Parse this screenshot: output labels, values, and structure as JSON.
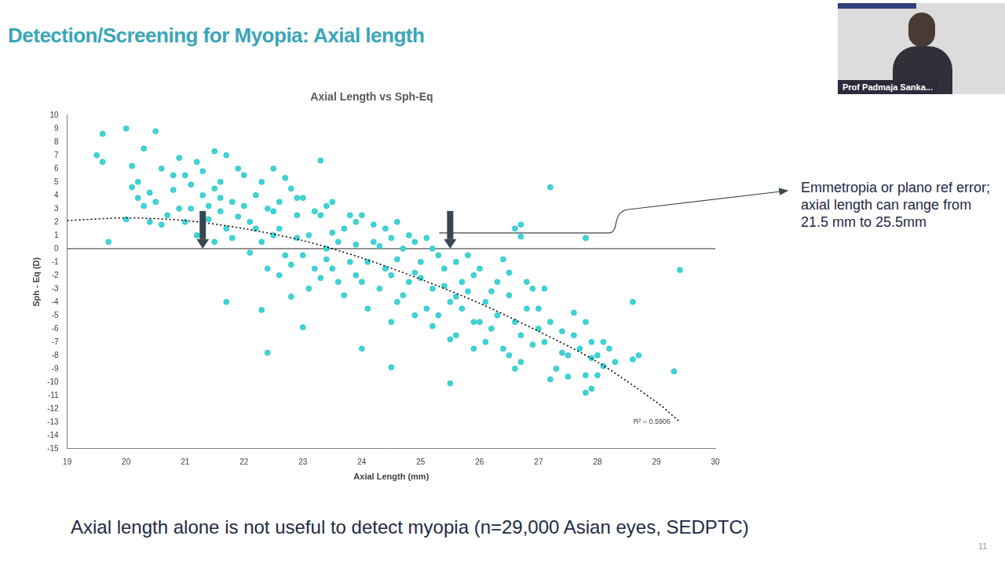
{
  "slide": {
    "title": "Detection/Screening for Myopia: Axial length",
    "footer": "Axial length alone is not useful to detect myopia (n=29,000 Asian eyes, SEDPTC)",
    "page_number": "11",
    "presenter": "Prof Padmaja Sanka..."
  },
  "chart_data": {
    "type": "scatter",
    "title": "Axial Length vs Sph-Eq",
    "x_label": "Axial Length (mm)",
    "y_label": "Sph - Eq (D)",
    "color": "#3ad6d8",
    "marker": "circle",
    "x": [
      19.6,
      19.5,
      19.6,
      19.7,
      20.0,
      20.5,
      20.0,
      21.7,
      22.4,
      23.3,
      25.5,
      27.2,
      27.8,
      28.6,
      29.4,
      29.3,
      28.6,
      28.7,
      26.7,
      26.6,
      26.7,
      24.0,
      24.5,
      23.0,
      22.8,
      27.8,
      27.9,
      22.3,
      20.1,
      20.2,
      20.3,
      20.4,
      20.5,
      20.6,
      20.7,
      20.8,
      20.9,
      20.3,
      20.6,
      20.9,
      20.2,
      20.4,
      20.8,
      20.1,
      21.0,
      21.1,
      21.2,
      21.3,
      21.4,
      21.5,
      21.6,
      21.7,
      21.8,
      21.9,
      21.2,
      21.5,
      21.1,
      21.4,
      21.6,
      21.8,
      21.3,
      21.7,
      21.9,
      21.0,
      21.5,
      21.6,
      22.0,
      22.1,
      22.2,
      22.3,
      22.4,
      22.5,
      22.6,
      22.7,
      22.8,
      22.9,
      22.1,
      22.3,
      22.5,
      22.6,
      22.8,
      22.9,
      22.2,
      22.4,
      22.7,
      22.0,
      22.5,
      22.9,
      22.6,
      23.0,
      23.1,
      23.2,
      23.3,
      23.4,
      23.5,
      23.6,
      23.7,
      23.8,
      23.9,
      23.1,
      23.2,
      23.4,
      23.5,
      23.6,
      23.7,
      23.8,
      23.9,
      23.0,
      23.3,
      23.5,
      23.9,
      23.4,
      24.0,
      24.1,
      24.2,
      24.3,
      24.4,
      24.5,
      24.6,
      24.7,
      24.8,
      24.9,
      24.1,
      24.2,
      24.4,
      24.5,
      24.6,
      24.7,
      24.8,
      24.9,
      24.0,
      24.3,
      24.5,
      24.9,
      24.6,
      25.0,
      25.1,
      25.2,
      25.3,
      25.4,
      25.5,
      25.6,
      25.7,
      25.8,
      25.9,
      25.1,
      25.2,
      25.4,
      25.5,
      25.6,
      25.7,
      25.8,
      25.9,
      25.0,
      25.3,
      25.6,
      25.9,
      25.2,
      26.0,
      26.1,
      26.2,
      26.3,
      26.4,
      26.5,
      26.6,
      26.7,
      26.8,
      26.9,
      26.1,
      26.3,
      26.5,
      26.7,
      26.9,
      26.2,
      26.4,
      26.6,
      26.8,
      26.0,
      26.5,
      27.0,
      27.1,
      27.2,
      27.3,
      27.4,
      27.5,
      27.6,
      27.7,
      27.8,
      27.9,
      27.0,
      27.2,
      27.4,
      27.6,
      27.8,
      27.1,
      27.5,
      27.9,
      28.0,
      28.1,
      28.2,
      28.0,
      28.3,
      28.1
    ],
    "values": [
      8.6,
      7.0,
      6.5,
      0.5,
      9.0,
      8.8,
      2.2,
      -4.0,
      -7.8,
      6.6,
      -10.1,
      4.6,
      0.8,
      -4.0,
      -1.6,
      -9.2,
      -8.3,
      -8.0,
      1.8,
      1.5,
      0.9,
      -7.5,
      -8.9,
      -5.9,
      -3.6,
      -10.8,
      -10.5,
      -4.6,
      6.2,
      5.0,
      7.5,
      4.2,
      3.5,
      6.0,
      2.5,
      5.5,
      3.0,
      3.2,
      1.8,
      6.8,
      3.8,
      2.0,
      4.4,
      4.6,
      5.5,
      3.0,
      6.5,
      4.0,
      2.2,
      7.3,
      5.0,
      1.5,
      3.5,
      6.0,
      1.0,
      0.5,
      4.8,
      3.2,
      2.8,
      0.8,
      5.8,
      7.0,
      2.4,
      2.0,
      4.5,
      3.8,
      5.5,
      2.0,
      4.0,
      0.5,
      3.0,
      6.0,
      1.5,
      -0.5,
      4.5,
      2.5,
      -0.3,
      5.0,
      1.0,
      3.5,
      -1.2,
      0.8,
      1.5,
      -1.5,
      5.3,
      3.2,
      2.8,
      3.8,
      -2.0,
      3.8,
      1.0,
      -1.5,
      2.5,
      0.0,
      3.5,
      -2.5,
      1.5,
      -1.0,
      2.0,
      -3.0,
      2.8,
      -0.8,
      1.2,
      0.5,
      -3.5,
      2.5,
      -2.0,
      -0.5,
      -2.2,
      -1.5,
      0.3,
      3.2,
      2.5,
      -1.0,
      0.5,
      -3.0,
      1.5,
      -2.0,
      -4.0,
      0.0,
      -2.5,
      -5.0,
      -4.5,
      1.8,
      -1.5,
      0.8,
      -0.8,
      -3.5,
      1.0,
      -1.8,
      -2.5,
      0.2,
      -5.5,
      0.5,
      2.0,
      -1.0,
      0.8,
      -3.0,
      -5.0,
      -1.5,
      -4.0,
      -6.5,
      -2.5,
      -0.5,
      -5.5,
      -4.5,
      0.0,
      -2.8,
      -6.8,
      -1.0,
      -4.5,
      -3.2,
      -7.5,
      -2.2,
      -0.5,
      -3.6,
      -2.0,
      -5.8,
      -1.5,
      -4.0,
      -6.0,
      -2.5,
      -7.5,
      -3.5,
      -5.5,
      -8.5,
      -4.5,
      -3.0,
      -7.0,
      -5.0,
      -1.8,
      -6.5,
      -7.2,
      -3.2,
      -0.8,
      -9.0,
      -2.5,
      -5.5,
      -8.0,
      -4.5,
      -7.0,
      -5.5,
      -9.0,
      -6.2,
      -8.0,
      -4.8,
      -7.5,
      -9.5,
      -8.2,
      -6.0,
      -9.8,
      -7.8,
      -6.5,
      -5.5,
      -3.0,
      -9.6,
      -7.0,
      -8.0,
      -8.8,
      -7.5,
      -9.5,
      -8.5,
      -7.0
    ],
    "trendline": {
      "x": [
        19,
        20,
        21,
        22,
        23,
        24,
        25,
        26,
        27,
        28,
        29,
        29.4
      ],
      "values": [
        2.1,
        2.3,
        2.1,
        1.5,
        0.6,
        -0.7,
        -2.3,
        -4.1,
        -6.2,
        -8.5,
        -11.5,
        -13
      ],
      "label": "R² = 0.5906",
      "color": "#000000",
      "line_style": "dotted"
    },
    "reference_line": {
      "y": 0,
      "color": "#595959"
    },
    "arrows": [
      {
        "x": 21.3,
        "y": 0
      },
      {
        "x": 25.5,
        "y": 0
      }
    ],
    "annotation": "Emmetropia or plano ref error; axial length can range from 21.5 mm to 25.5mm",
    "xlim": [
      19,
      30
    ],
    "xticks": [
      19,
      20,
      21,
      22,
      23,
      24,
      25,
      26,
      27,
      28,
      29,
      30
    ],
    "ylim": [
      -15,
      10
    ],
    "yticks": [
      -15,
      -14,
      -13,
      -12,
      -11,
      -10,
      -9,
      -8,
      -7,
      -6,
      -5,
      -4,
      -3,
      -2,
      -1,
      0,
      1,
      2,
      3,
      4,
      5,
      6,
      7,
      8,
      9,
      10
    ],
    "grid": false,
    "legend": "none"
  }
}
